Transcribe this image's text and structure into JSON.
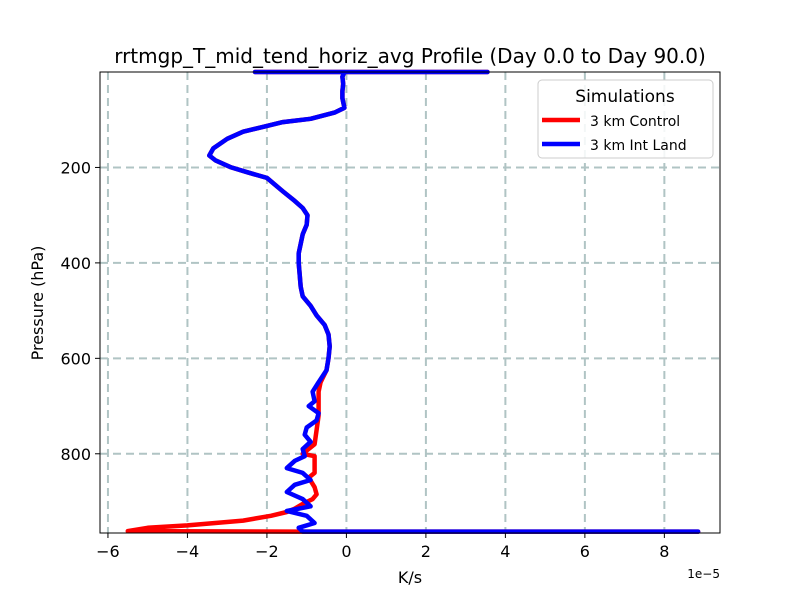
{
  "chart_data": {
    "type": "line",
    "title": "rrtmgp_T_mid_tend_horiz_avg Profile (Day 0.0 to Day 90.0)",
    "xlabel": "K/s",
    "ylabel": "Pressure (hPa)",
    "x_offset_label": "1e−5",
    "xlim": [
      -6.2,
      9.4
    ],
    "ylim": [
      966,
      0
    ],
    "xticks": [
      -6,
      -4,
      -2,
      0,
      2,
      4,
      6,
      8
    ],
    "xtick_labels": [
      "−6",
      "−4",
      "−2",
      "0",
      "2",
      "4",
      "6",
      "8"
    ],
    "yticks": [
      200,
      400,
      600,
      800
    ],
    "ytick_labels": [
      "200",
      "400",
      "600",
      "800"
    ],
    "grid": true,
    "legend": {
      "title": "Simulations",
      "placement": "top-right"
    },
    "series": [
      {
        "name": "3 km Control",
        "color": "#ff0000",
        "points": [
          [
            -2.3,
            0
          ],
          [
            3.55,
            0
          ],
          [
            -0.05,
            0
          ],
          [
            -0.1,
            10
          ],
          [
            -0.08,
            25
          ],
          [
            -0.1,
            40
          ],
          [
            -0.1,
            55
          ],
          [
            -0.05,
            75
          ],
          [
            -0.3,
            85
          ],
          [
            -0.9,
            98
          ],
          [
            -1.6,
            105
          ],
          [
            -2.1,
            115
          ],
          [
            -2.6,
            125
          ],
          [
            -3.0,
            140
          ],
          [
            -3.35,
            160
          ],
          [
            -3.45,
            175
          ],
          [
            -3.3,
            185
          ],
          [
            -2.9,
            200
          ],
          [
            -2.5,
            210
          ],
          [
            -2.0,
            222
          ],
          [
            -1.6,
            250
          ],
          [
            -1.3,
            270
          ],
          [
            -1.1,
            285
          ],
          [
            -0.98,
            300
          ],
          [
            -1.0,
            320
          ],
          [
            -1.1,
            340
          ],
          [
            -1.15,
            360
          ],
          [
            -1.2,
            380
          ],
          [
            -1.2,
            400
          ],
          [
            -1.18,
            420
          ],
          [
            -1.15,
            450
          ],
          [
            -1.1,
            470
          ],
          [
            -0.9,
            490
          ],
          [
            -0.75,
            510
          ],
          [
            -0.55,
            530
          ],
          [
            -0.45,
            550
          ],
          [
            -0.42,
            575
          ],
          [
            -0.45,
            600
          ],
          [
            -0.5,
            625
          ],
          [
            -0.65,
            650
          ],
          [
            -0.7,
            670
          ],
          [
            -0.7,
            690
          ],
          [
            -0.7,
            720
          ],
          [
            -0.75,
            750
          ],
          [
            -0.8,
            780
          ],
          [
            -1.1,
            800
          ],
          [
            -0.8,
            805
          ],
          [
            -0.8,
            840
          ],
          [
            -0.95,
            850
          ],
          [
            -0.8,
            870
          ],
          [
            -0.75,
            885
          ],
          [
            -0.85,
            895
          ],
          [
            -1.1,
            905
          ],
          [
            -1.3,
            915
          ],
          [
            -1.5,
            922
          ],
          [
            -1.9,
            930
          ],
          [
            -2.6,
            940
          ],
          [
            -4.0,
            950
          ],
          [
            -5.0,
            955
          ],
          [
            -5.5,
            962
          ],
          [
            -1.2,
            963
          ],
          [
            8.85,
            963
          ]
        ]
      },
      {
        "name": "3 km Int Land",
        "color": "#0000ff",
        "points": [
          [
            -2.3,
            0
          ],
          [
            3.55,
            0
          ],
          [
            -0.05,
            0
          ],
          [
            -0.1,
            10
          ],
          [
            -0.08,
            25
          ],
          [
            -0.1,
            40
          ],
          [
            -0.1,
            55
          ],
          [
            -0.05,
            75
          ],
          [
            -0.3,
            85
          ],
          [
            -0.9,
            98
          ],
          [
            -1.6,
            105
          ],
          [
            -2.1,
            115
          ],
          [
            -2.6,
            125
          ],
          [
            -3.0,
            140
          ],
          [
            -3.35,
            160
          ],
          [
            -3.45,
            175
          ],
          [
            -3.3,
            185
          ],
          [
            -2.9,
            200
          ],
          [
            -2.5,
            210
          ],
          [
            -2.0,
            222
          ],
          [
            -1.6,
            250
          ],
          [
            -1.3,
            270
          ],
          [
            -1.1,
            285
          ],
          [
            -0.98,
            300
          ],
          [
            -1.0,
            320
          ],
          [
            -1.1,
            340
          ],
          [
            -1.15,
            360
          ],
          [
            -1.2,
            380
          ],
          [
            -1.2,
            400
          ],
          [
            -1.18,
            420
          ],
          [
            -1.15,
            450
          ],
          [
            -1.1,
            470
          ],
          [
            -0.9,
            490
          ],
          [
            -0.75,
            510
          ],
          [
            -0.55,
            530
          ],
          [
            -0.45,
            550
          ],
          [
            -0.42,
            575
          ],
          [
            -0.45,
            600
          ],
          [
            -0.5,
            625
          ],
          [
            -0.7,
            650
          ],
          [
            -0.85,
            670
          ],
          [
            -0.8,
            690
          ],
          [
            -0.95,
            700
          ],
          [
            -0.7,
            715
          ],
          [
            -0.75,
            730
          ],
          [
            -1.0,
            745
          ],
          [
            -1.05,
            760
          ],
          [
            -0.9,
            775
          ],
          [
            -1.1,
            790
          ],
          [
            -1.05,
            805
          ],
          [
            -1.3,
            815
          ],
          [
            -1.5,
            830
          ],
          [
            -1.1,
            840
          ],
          [
            -0.9,
            855
          ],
          [
            -1.3,
            865
          ],
          [
            -1.5,
            880
          ],
          [
            -1.1,
            895
          ],
          [
            -0.9,
            910
          ],
          [
            -1.5,
            920
          ],
          [
            -1.0,
            930
          ],
          [
            -0.8,
            945
          ],
          [
            -1.2,
            955
          ],
          [
            -1.1,
            963
          ],
          [
            8.85,
            963
          ]
        ]
      }
    ]
  }
}
